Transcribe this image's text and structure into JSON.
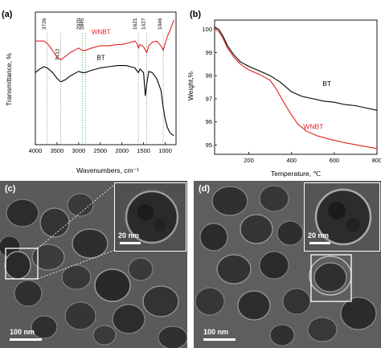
{
  "header_text": "",
  "panels": {
    "a": {
      "tag": "(a)"
    },
    "b": {
      "tag": "(b)"
    },
    "c": {
      "tag": "(c)",
      "scale_main": "100 nm",
      "scale_inset": "20 nm"
    },
    "d": {
      "tag": "(d)",
      "scale_main": "100 nm",
      "scale_inset": "20 nm"
    }
  },
  "chart_data": [
    {
      "type": "line",
      "xlabel": "Wavenumbers, cm⁻¹",
      "ylabel": "Transmittance, %",
      "xlim": [
        4000,
        750
      ],
      "x_ticks": [
        "4000",
        "3500",
        "3000",
        "2500",
        "2000",
        "1500",
        "1000"
      ],
      "peak_labels": [
        "3726",
        "3412",
        "2920",
        "2845",
        "1621",
        "1427",
        "1046"
      ],
      "series": [
        {
          "name": "WNBT",
          "color": "#e0201b",
          "points": [
            [
              4000,
              0.82
            ],
            [
              3800,
              0.82
            ],
            [
              3726,
              0.8
            ],
            [
              3600,
              0.74
            ],
            [
              3500,
              0.68
            ],
            [
              3412,
              0.66
            ],
            [
              3300,
              0.69
            ],
            [
              3200,
              0.72
            ],
            [
              3100,
              0.74
            ],
            [
              3000,
              0.76
            ],
            [
              2920,
              0.74
            ],
            [
              2845,
              0.74
            ],
            [
              2700,
              0.76
            ],
            [
              2500,
              0.78
            ],
            [
              2300,
              0.78
            ],
            [
              2100,
              0.79
            ],
            [
              2000,
              0.79
            ],
            [
              1900,
              0.8
            ],
            [
              1800,
              0.81
            ],
            [
              1700,
              0.82
            ],
            [
              1650,
              0.8
            ],
            [
              1621,
              0.76
            ],
            [
              1580,
              0.79
            ],
            [
              1500,
              0.77
            ],
            [
              1427,
              0.72
            ],
            [
              1380,
              0.78
            ],
            [
              1300,
              0.81
            ],
            [
              1200,
              0.82
            ],
            [
              1100,
              0.78
            ],
            [
              1046,
              0.74
            ],
            [
              1000,
              0.8
            ],
            [
              950,
              0.86
            ],
            [
              900,
              0.9
            ],
            [
              850,
              0.95
            ],
            [
              800,
              1.0
            ]
          ]
        },
        {
          "name": "BT",
          "color": "#000000",
          "points": [
            [
              4000,
              0.55
            ],
            [
              3900,
              0.58
            ],
            [
              3800,
              0.6
            ],
            [
              3726,
              0.59
            ],
            [
              3600,
              0.55
            ],
            [
              3500,
              0.5
            ],
            [
              3412,
              0.47
            ],
            [
              3300,
              0.49
            ],
            [
              3200,
              0.52
            ],
            [
              3100,
              0.54
            ],
            [
              3000,
              0.56
            ],
            [
              2920,
              0.55
            ],
            [
              2845,
              0.55
            ],
            [
              2700,
              0.57
            ],
            [
              2500,
              0.59
            ],
            [
              2300,
              0.6
            ],
            [
              2100,
              0.61
            ],
            [
              2000,
              0.61
            ],
            [
              1900,
              0.61
            ],
            [
              1800,
              0.6
            ],
            [
              1700,
              0.59
            ],
            [
              1621,
              0.55
            ],
            [
              1580,
              0.58
            ],
            [
              1500,
              0.55
            ],
            [
              1460,
              0.35
            ],
            [
              1427,
              0.45
            ],
            [
              1380,
              0.56
            ],
            [
              1300,
              0.55
            ],
            [
              1200,
              0.5
            ],
            [
              1100,
              0.4
            ],
            [
              1046,
              0.25
            ],
            [
              1000,
              0.15
            ],
            [
              950,
              0.08
            ],
            [
              900,
              0.04
            ],
            [
              850,
              0.02
            ],
            [
              800,
              0.01
            ]
          ]
        }
      ]
    },
    {
      "type": "line",
      "xlabel": "Temperature, ℃",
      "ylabel": "Weight,%",
      "xlim": [
        40,
        800
      ],
      "ylim": [
        94.6,
        100.4
      ],
      "x_ticks": [
        200,
        400,
        600,
        800
      ],
      "y_ticks": [
        95,
        96,
        97,
        98,
        99,
        100
      ],
      "series": [
        {
          "name": "BT",
          "color": "#000000",
          "points": [
            [
              40,
              100.1
            ],
            [
              60,
              100.0
            ],
            [
              80,
              99.7
            ],
            [
              100,
              99.3
            ],
            [
              130,
              98.9
            ],
            [
              160,
              98.6
            ],
            [
              200,
              98.4
            ],
            [
              250,
              98.2
            ],
            [
              300,
              98.0
            ],
            [
              350,
              97.7
            ],
            [
              400,
              97.3
            ],
            [
              450,
              97.1
            ],
            [
              500,
              97.0
            ],
            [
              550,
              96.9
            ],
            [
              600,
              96.85
            ],
            [
              650,
              96.75
            ],
            [
              700,
              96.7
            ],
            [
              750,
              96.6
            ],
            [
              800,
              96.5
            ]
          ]
        },
        {
          "name": "WNBT",
          "color": "#e0201b",
          "points": [
            [
              40,
              100.05
            ],
            [
              60,
              99.9
            ],
            [
              80,
              99.6
            ],
            [
              100,
              99.2
            ],
            [
              130,
              98.8
            ],
            [
              160,
              98.5
            ],
            [
              200,
              98.25
            ],
            [
              250,
              98.05
            ],
            [
              300,
              97.8
            ],
            [
              330,
              97.4
            ],
            [
              360,
              96.9
            ],
            [
              400,
              96.3
            ],
            [
              430,
              95.9
            ],
            [
              470,
              95.6
            ],
            [
              520,
              95.4
            ],
            [
              580,
              95.25
            ],
            [
              650,
              95.1
            ],
            [
              720,
              94.98
            ],
            [
              800,
              94.85
            ]
          ]
        }
      ]
    }
  ]
}
